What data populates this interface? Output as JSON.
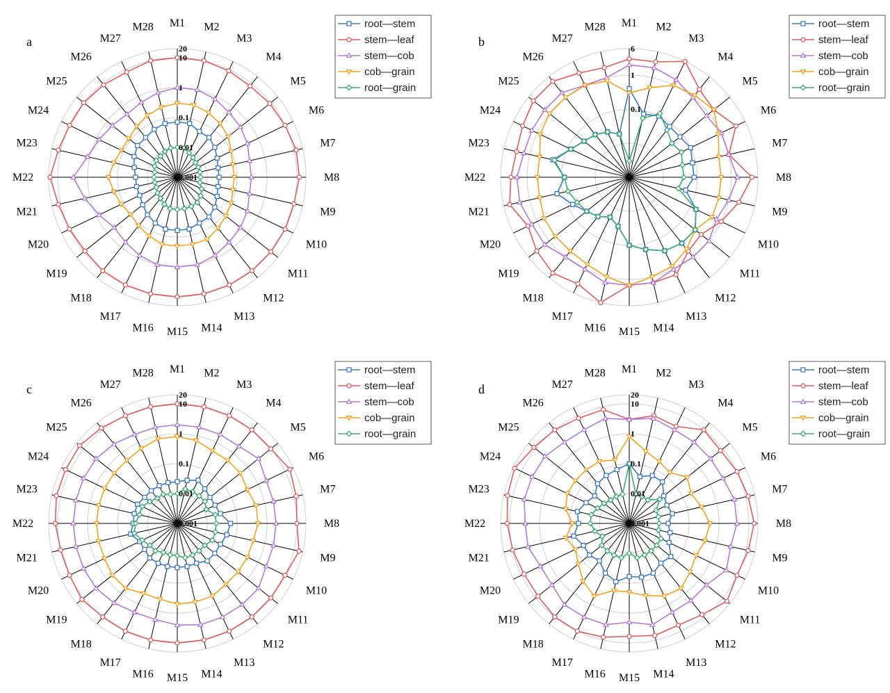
{
  "figure": {
    "title": ""
  },
  "series_meta": [
    {
      "key": "rs",
      "name": "root—stem",
      "color": "#3b78c4",
      "marker": "square"
    },
    {
      "key": "sl",
      "name": "stem—leaf",
      "color": "#e05c5c",
      "marker": "circle"
    },
    {
      "key": "sc",
      "name": "stem—cob",
      "color": "#b07ad8",
      "marker": "triangle-up"
    },
    {
      "key": "cg",
      "name": "cob—grain",
      "color": "#f5a11e",
      "marker": "triangle-down"
    },
    {
      "key": "rg",
      "name": "root—grain",
      "color": "#3aaa72",
      "marker": "diamond"
    }
  ],
  "chart_data": [
    {
      "panel": "a",
      "type": "radar",
      "scale": "log",
      "rmin": 0.001,
      "rmax": 20,
      "rings": [
        0.001,
        0.01,
        0.1,
        1,
        10,
        20
      ],
      "ring_labels": [
        "0.001",
        "0.01",
        "0.1",
        "1",
        "10",
        "20"
      ],
      "categories": [
        "M1",
        "M2",
        "M3",
        "M4",
        "M5",
        "M6",
        "M7",
        "M8",
        "M9",
        "M10",
        "M11",
        "M12",
        "M13",
        "M14",
        "M15",
        "M16",
        "M17",
        "M18",
        "M19",
        "M20",
        "M21",
        "M22",
        "M23",
        "M24",
        "M25",
        "M26",
        "M27",
        "M28"
      ],
      "series": [
        {
          "key": "rs",
          "values": [
            0.07,
            0.07,
            0.05,
            0.05,
            0.04,
            0.03,
            0.025,
            0.025,
            0.025,
            0.03,
            0.04,
            0.05,
            0.05,
            0.06,
            0.06,
            0.06,
            0.05,
            0.04,
            0.03,
            0.025,
            0.025,
            0.025,
            0.03,
            0.04,
            0.05,
            0.05,
            0.06,
            0.07
          ]
        },
        {
          "key": "sl",
          "values": [
            10,
            10,
            9,
            8,
            9,
            10,
            12,
            12,
            10,
            10,
            10,
            10,
            10,
            10,
            10,
            10,
            10,
            10,
            9,
            10,
            12,
            18,
            12,
            10,
            10,
            9,
            8,
            10
          ]
        },
        {
          "key": "sc",
          "values": [
            1,
            1,
            0.8,
            0.6,
            0.5,
            0.4,
            0.3,
            0.3,
            0.3,
            0.4,
            0.5,
            0.6,
            0.8,
            1,
            1,
            1,
            0.8,
            0.6,
            0.5,
            0.8,
            1.5,
            3,
            1.2,
            0.8,
            0.6,
            0.5,
            0.6,
            0.8
          ]
        },
        {
          "key": "cg",
          "values": [
            0.3,
            0.3,
            0.25,
            0.2,
            0.15,
            0.1,
            0.08,
            0.08,
            0.08,
            0.1,
            0.12,
            0.15,
            0.2,
            0.2,
            0.2,
            0.2,
            0.15,
            0.12,
            0.1,
            0.12,
            0.15,
            0.2,
            0.15,
            0.12,
            0.12,
            0.15,
            0.2,
            0.25
          ]
        },
        {
          "key": "rg",
          "values": [
            0.01,
            0.01,
            0.008,
            0.007,
            0.006,
            0.006,
            0.006,
            0.006,
            0.006,
            0.008,
            0.01,
            0.012,
            0.012,
            0.012,
            0.012,
            0.012,
            0.01,
            0.008,
            0.007,
            0.006,
            0.006,
            0.006,
            0.006,
            0.007,
            0.008,
            0.008,
            0.009,
            0.01
          ]
        }
      ]
    },
    {
      "panel": "b",
      "type": "radar",
      "scale": "log",
      "rmin": 0.001,
      "rmax": 6,
      "rings": [
        0.001,
        0.01,
        0.1,
        1,
        6
      ],
      "ring_labels": [
        "",
        "",
        "0.1",
        "1",
        "6"
      ],
      "categories": [
        "M1",
        "M2",
        "M3",
        "M4",
        "M5",
        "M6",
        "M7",
        "M8",
        "M9",
        "M10",
        "M11",
        "M12",
        "M13",
        "M14",
        "M15",
        "M16",
        "M17",
        "M18",
        "M19",
        "M20",
        "M21",
        "M22",
        "M23",
        "M24",
        "M25",
        "M26",
        "M27",
        "M28"
      ],
      "series": [
        {
          "key": "rs",
          "values": [
            0.4,
            0.08,
            0.1,
            0.08,
            0.08,
            0.1,
            0.08,
            0.08,
            0.05,
            0.15,
            0.3,
            0.3,
            0.25,
            0.15,
            0.1,
            0.03,
            0.02,
            0.03,
            0.04,
            0.07,
            0.15,
            0.08,
            0.2,
            0.08,
            0.05,
            0.04,
            0.03,
            0.02
          ]
        },
        {
          "key": "sl",
          "values": [
            3,
            3,
            6,
            2,
            1.5,
            3,
            1,
            4,
            2,
            1,
            0.5,
            0.6,
            1.5,
            1.5,
            1.5,
            6,
            3,
            4,
            3,
            2,
            4,
            3,
            2.5,
            3,
            4,
            4,
            2.5,
            2
          ]
        },
        {
          "key": "sc",
          "values": [
            2,
            2,
            1.5,
            1,
            0.8,
            1,
            1,
            1.5,
            1,
            0.7,
            1,
            1,
            1,
            1.5,
            1.5,
            1.5,
            1,
            1,
            1.5,
            1.5,
            2,
            2,
            1.5,
            1.5,
            1.5,
            1.5,
            1,
            1
          ]
        },
        {
          "key": "cg",
          "values": [
            0.3,
            0.5,
            1,
            1.2,
            1.5,
            0.8,
            0.5,
            0.5,
            0.5,
            0.5,
            0.3,
            0.5,
            0.8,
            1,
            1.5,
            1,
            0.7,
            0.6,
            0.6,
            0.6,
            0.5,
            0.5,
            0.5,
            0.8,
            1,
            1,
            1,
            0.8
          ]
        },
        {
          "key": "rg",
          "values": [
            0.003,
            0.06,
            0.12,
            0.06,
            0.04,
            0.05,
            0.04,
            0.04,
            0.03,
            0.15,
            0.3,
            0.3,
            0.25,
            0.15,
            0.1,
            0.03,
            0.02,
            0.03,
            0.04,
            0.05,
            0.07,
            0.08,
            0.18,
            0.08,
            0.05,
            0.04,
            0.03,
            0.02
          ]
        }
      ]
    },
    {
      "panel": "c",
      "type": "radar",
      "scale": "log",
      "rmin": 0.001,
      "rmax": 20,
      "rings": [
        0.001,
        0.01,
        0.1,
        1,
        10,
        20
      ],
      "ring_labels": [
        "0.001",
        "0.01",
        "0.1",
        "1",
        "10",
        "20"
      ],
      "categories": [
        "M1",
        "M2",
        "M3",
        "M4",
        "M5",
        "M6",
        "M7",
        "M8",
        "M9",
        "M10",
        "M11",
        "M12",
        "M13",
        "M14",
        "M15",
        "M16",
        "M17",
        "M18",
        "M19",
        "M20",
        "M21",
        "M22",
        "M23",
        "M24",
        "M25",
        "M26",
        "M27",
        "M28"
      ],
      "series": [
        {
          "key": "rs",
          "values": [
            0.025,
            0.03,
            0.04,
            0.03,
            0.025,
            0.025,
            0.03,
            0.06,
            0.05,
            0.04,
            0.04,
            0.04,
            0.03,
            0.03,
            0.03,
            0.03,
            0.03,
            0.03,
            0.025,
            0.025,
            0.04,
            0.03,
            0.03,
            0.03,
            0.025,
            0.025,
            0.025,
            0.025
          ]
        },
        {
          "key": "sl",
          "values": [
            10,
            10,
            10,
            10,
            10,
            15,
            12,
            10,
            15,
            10,
            10,
            10,
            10,
            10,
            10,
            10,
            10,
            10,
            12,
            10,
            10,
            12,
            14,
            14,
            15,
            12,
            10,
            10
          ]
        },
        {
          "key": "sc",
          "values": [
            2,
            2,
            2,
            2,
            3,
            2,
            2,
            2,
            2,
            2,
            3,
            3,
            3,
            3,
            2.5,
            2,
            2,
            2.5,
            3,
            3,
            3,
            3,
            3,
            3,
            3,
            2.5,
            2,
            2
          ]
        },
        {
          "key": "cg",
          "values": [
            0.8,
            0.7,
            0.5,
            0.5,
            0.5,
            0.4,
            0.5,
            0.5,
            0.4,
            0.4,
            0.4,
            0.4,
            0.5,
            0.5,
            0.5,
            0.4,
            0.4,
            0.6,
            0.6,
            0.5,
            0.5,
            0.5,
            0.5,
            0.5,
            0.5,
            0.5,
            0.6,
            0.8
          ]
        },
        {
          "key": "rg",
          "values": [
            0.01,
            0.015,
            0.015,
            0.015,
            0.015,
            0.012,
            0.02,
            0.02,
            0.02,
            0.02,
            0.015,
            0.015,
            0.015,
            0.015,
            0.012,
            0.012,
            0.012,
            0.015,
            0.015,
            0.02,
            0.03,
            0.025,
            0.02,
            0.02,
            0.015,
            0.012,
            0.012,
            0.01
          ]
        }
      ]
    },
    {
      "panel": "d",
      "type": "radar",
      "scale": "log",
      "rmin": 0.001,
      "rmax": 20,
      "rings": [
        0.001,
        0.01,
        0.1,
        1,
        10,
        20
      ],
      "ring_labels": [
        "0.001",
        "0.01",
        "0.1",
        "1",
        "10",
        "20"
      ],
      "categories": [
        "M1",
        "M2",
        "M3",
        "M4",
        "M5",
        "M6",
        "M7",
        "M8",
        "M9",
        "M10",
        "M11",
        "M12",
        "M13",
        "M14",
        "M15",
        "M16",
        "M17",
        "M18",
        "M19",
        "M20",
        "M21",
        "M22",
        "M23",
        "M24",
        "M25",
        "M26",
        "M27",
        "M28"
      ],
      "series": [
        {
          "key": "rs",
          "values": [
            0.1,
            0.04,
            0.06,
            0.06,
            0.03,
            0.025,
            0.03,
            0.02,
            0.025,
            0.03,
            0.06,
            0.05,
            0.07,
            0.07,
            0.06,
            0.1,
            0.07,
            0.04,
            0.05,
            0.05,
            0.08,
            0.05,
            0.06,
            0.04,
            0.03,
            0.05,
            0.06,
            0.07
          ]
        },
        {
          "key": "sl",
          "values": [
            3,
            5,
            4,
            10,
            8,
            10,
            12,
            15,
            12,
            10,
            15,
            8,
            6,
            7,
            6,
            8,
            10,
            10,
            8,
            8,
            10,
            12,
            15,
            18,
            12,
            10,
            8,
            8
          ]
        },
        {
          "key": "sc",
          "values": [
            3,
            4,
            3,
            3,
            3,
            3,
            4,
            4,
            3,
            4,
            2,
            2,
            2,
            3,
            2,
            3,
            3,
            3,
            2,
            2,
            3,
            3,
            4,
            4,
            4,
            3,
            3,
            4
          ]
        },
        {
          "key": "cg",
          "values": [
            0.8,
            0.3,
            0.2,
            0.15,
            0.3,
            0.2,
            0.3,
            0.5,
            0.4,
            0.3,
            0.4,
            0.6,
            0.5,
            0.3,
            0.2,
            0.2,
            0.5,
            0.3,
            0.15,
            0.1,
            0.15,
            0.08,
            0.15,
            0.2,
            0.2,
            0.2,
            0.2,
            0.15
          ]
        },
        {
          "key": "rg",
          "values": [
            0.1,
            0.01,
            0.01,
            0.01,
            0.02,
            0.01,
            0.01,
            0.01,
            0.01,
            0.015,
            0.015,
            0.015,
            0.015,
            0.015,
            0.01,
            0.015,
            0.015,
            0.015,
            0.015,
            0.01,
            0.015,
            0.02,
            0.02,
            0.015,
            0.012,
            0.01,
            0.01,
            0.01
          ]
        }
      ]
    }
  ]
}
